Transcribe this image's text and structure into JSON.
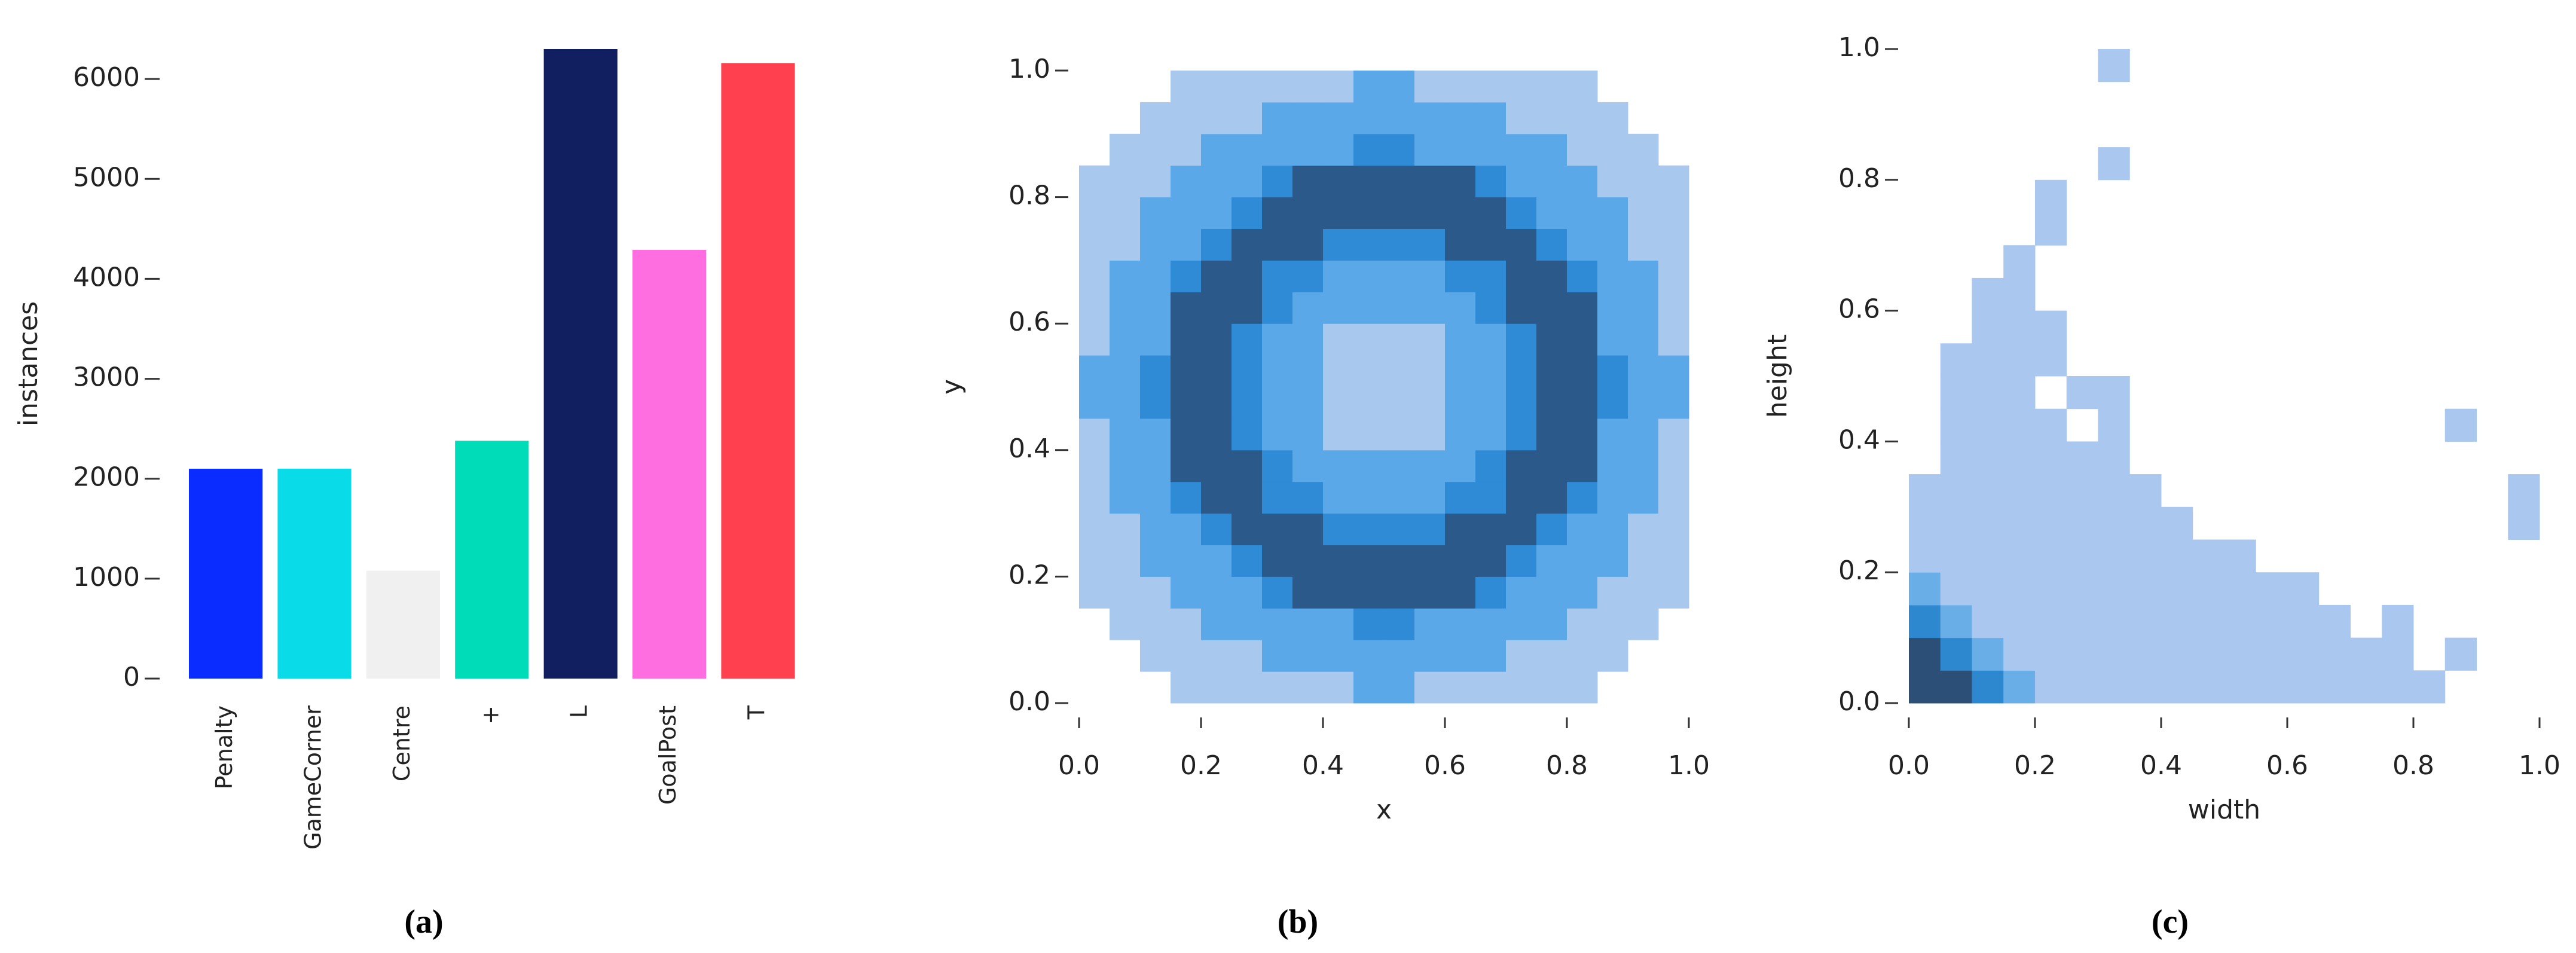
{
  "chart_data": [
    {
      "type": "bar",
      "caption": "(a)",
      "ylabel": "instances",
      "categories": [
        "Penalty",
        "GameCorner",
        "Centre",
        "+",
        "L",
        "GoalPost",
        "T"
      ],
      "values": [
        2100,
        2100,
        1080,
        2380,
        6300,
        4290,
        6160
      ],
      "colors": [
        "#0a2cff",
        "#0adbe8",
        "#f0f0f0",
        "#00dcb8",
        "#111f60",
        "#ff6ee0",
        "#ff414f"
      ],
      "ylim": [
        0,
        6300
      ],
      "yticks": [
        0,
        1000,
        2000,
        3000,
        4000,
        5000,
        6000
      ]
    },
    {
      "type": "heatmap",
      "caption": "(b)",
      "xlabel": "x",
      "ylabel": "y",
      "xlim": [
        0,
        1
      ],
      "ylim": [
        0,
        1
      ],
      "xticks": [
        {
          "value": 0,
          "label": "0.0"
        },
        {
          "value": 0.2,
          "label": "0.2"
        },
        {
          "value": 0.4,
          "label": "0.4"
        },
        {
          "value": 0.6,
          "label": "0.6"
        },
        {
          "value": 0.8,
          "label": "0.8"
        },
        {
          "value": 1,
          "label": "1.0"
        }
      ],
      "yticks": [
        {
          "value": 0,
          "label": "0.0"
        },
        {
          "value": 0.2,
          "label": "0.2"
        },
        {
          "value": 0.4,
          "label": "0.4"
        },
        {
          "value": 0.6,
          "label": "0.6"
        },
        {
          "value": 0.8,
          "label": "0.8"
        },
        {
          "value": 1,
          "label": "1.0"
        }
      ],
      "xbins": [
        0,
        0.05,
        0.1,
        0.15,
        0.2,
        0.25,
        0.3,
        0.35,
        0.4,
        0.45,
        0.5,
        0.55,
        0.6,
        0.65,
        0.7,
        0.75,
        0.8,
        0.85,
        0.9,
        0.95,
        1
      ],
      "ybins": [
        0,
        0.05,
        0.1,
        0.15,
        0.2,
        0.25,
        0.3,
        0.35,
        0.4,
        0.45,
        0.5,
        0.55,
        0.6,
        0.65,
        0.7,
        0.75,
        0.8,
        0.85,
        0.9,
        0.95,
        1
      ],
      "colors": [
        "#a9c8ee",
        "#5aa8e8",
        "#2f8bd6",
        "#2b5a8a"
      ],
      "z": [
        [
          0,
          0,
          0,
          1,
          1,
          1,
          1,
          1,
          1,
          2,
          2,
          1,
          1,
          1,
          1,
          1,
          1,
          0,
          0,
          0
        ],
        [
          0,
          0,
          1,
          1,
          1,
          1,
          2,
          2,
          2,
          2,
          2,
          2,
          2,
          2,
          1,
          1,
          1,
          1,
          0,
          0
        ],
        [
          0,
          1,
          1,
          1,
          2,
          2,
          2,
          2,
          2,
          3,
          3,
          2,
          2,
          2,
          2,
          2,
          1,
          1,
          1,
          0
        ],
        [
          1,
          1,
          1,
          2,
          2,
          2,
          3,
          4,
          4,
          4,
          4,
          4,
          4,
          3,
          2,
          2,
          2,
          1,
          1,
          1
        ],
        [
          1,
          1,
          2,
          2,
          2,
          3,
          4,
          4,
          4,
          4,
          4,
          4,
          4,
          4,
          3,
          2,
          2,
          2,
          1,
          1
        ],
        [
          1,
          1,
          2,
          2,
          3,
          4,
          4,
          4,
          3,
          3,
          3,
          3,
          4,
          4,
          4,
          3,
          2,
          2,
          1,
          1
        ],
        [
          1,
          2,
          2,
          3,
          4,
          4,
          3,
          3,
          2,
          2,
          2,
          2,
          3,
          3,
          4,
          4,
          3,
          2,
          2,
          1
        ],
        [
          1,
          2,
          2,
          4,
          4,
          4,
          3,
          2,
          2,
          2,
          2,
          2,
          2,
          3,
          4,
          4,
          4,
          2,
          2,
          1
        ],
        [
          1,
          2,
          2,
          4,
          4,
          3,
          2,
          2,
          1,
          1,
          1,
          1,
          2,
          2,
          3,
          4,
          4,
          2,
          2,
          1
        ],
        [
          2,
          2,
          3,
          4,
          4,
          3,
          2,
          2,
          1,
          1,
          1,
          1,
          2,
          2,
          3,
          4,
          4,
          3,
          2,
          2
        ],
        [
          2,
          2,
          3,
          4,
          4,
          3,
          2,
          2,
          1,
          1,
          1,
          1,
          2,
          2,
          3,
          4,
          4,
          3,
          2,
          2
        ],
        [
          1,
          2,
          2,
          4,
          4,
          3,
          2,
          2,
          1,
          1,
          1,
          1,
          2,
          2,
          3,
          4,
          4,
          2,
          2,
          1
        ],
        [
          1,
          2,
          2,
          4,
          4,
          4,
          3,
          2,
          2,
          2,
          2,
          2,
          2,
          3,
          4,
          4,
          4,
          2,
          2,
          1
        ],
        [
          1,
          2,
          2,
          3,
          4,
          4,
          3,
          3,
          2,
          2,
          2,
          2,
          3,
          3,
          4,
          4,
          3,
          2,
          2,
          1
        ],
        [
          1,
          1,
          2,
          2,
          3,
          4,
          4,
          4,
          3,
          3,
          3,
          3,
          4,
          4,
          4,
          3,
          2,
          2,
          1,
          1
        ],
        [
          1,
          1,
          2,
          2,
          2,
          3,
          4,
          4,
          4,
          4,
          4,
          4,
          4,
          4,
          3,
          2,
          2,
          2,
          1,
          1
        ],
        [
          1,
          1,
          1,
          2,
          2,
          2,
          3,
          4,
          4,
          4,
          4,
          4,
          4,
          3,
          2,
          2,
          2,
          1,
          1,
          1
        ],
        [
          0,
          1,
          1,
          1,
          2,
          2,
          2,
          2,
          2,
          3,
          3,
          2,
          2,
          2,
          2,
          2,
          1,
          1,
          1,
          0
        ],
        [
          0,
          0,
          1,
          1,
          1,
          1,
          2,
          2,
          2,
          2,
          2,
          2,
          2,
          2,
          1,
          1,
          1,
          1,
          0,
          0
        ],
        [
          0,
          0,
          0,
          1,
          1,
          1,
          1,
          1,
          1,
          2,
          2,
          1,
          1,
          1,
          1,
          1,
          1,
          0,
          0,
          0
        ]
      ]
    },
    {
      "type": "heatmap",
      "caption": "(c)",
      "xlabel": "width",
      "ylabel": "height",
      "xlim": [
        0,
        1
      ],
      "ylim": [
        0,
        1
      ],
      "xticks": [
        {
          "value": 0,
          "label": "0.0"
        },
        {
          "value": 0.2,
          "label": "0.2"
        },
        {
          "value": 0.4,
          "label": "0.4"
        },
        {
          "value": 0.6,
          "label": "0.6"
        },
        {
          "value": 0.8,
          "label": "0.8"
        },
        {
          "value": 1,
          "label": "1.0"
        }
      ],
      "yticks": [
        {
          "value": 0,
          "label": "0.0"
        },
        {
          "value": 0.2,
          "label": "0.2"
        },
        {
          "value": 0.4,
          "label": "0.4"
        },
        {
          "value": 0.6,
          "label": "0.6"
        },
        {
          "value": 0.8,
          "label": "0.8"
        },
        {
          "value": 1,
          "label": "1.0"
        }
      ],
      "xbins": [
        0,
        0.05,
        0.1,
        0.15,
        0.2,
        0.25,
        0.3,
        0.35,
        0.4,
        0.45,
        0.5,
        0.55,
        0.6,
        0.65,
        0.7,
        0.75,
        0.8,
        0.85,
        0.9,
        0.95,
        1
      ],
      "ybins": [
        0,
        0.05,
        0.1,
        0.15,
        0.2,
        0.25,
        0.3,
        0.35,
        0.4,
        0.45,
        0.5,
        0.55,
        0.6,
        0.65,
        0.7,
        0.75,
        0.8,
        0.85,
        0.9,
        0.95,
        1
      ],
      "colors": [
        "#aac8ef",
        "#6aaee8",
        "#2e88d0",
        "#2c4f78"
      ],
      "z": [
        [
          4,
          4,
          3,
          2,
          1,
          1,
          1,
          1,
          1,
          1,
          1,
          1,
          1,
          1,
          1,
          1,
          1,
          0,
          0,
          0
        ],
        [
          4,
          3,
          2,
          1,
          1,
          1,
          1,
          1,
          1,
          1,
          1,
          1,
          1,
          1,
          1,
          1,
          0,
          1,
          0,
          0
        ],
        [
          3,
          2,
          1,
          1,
          1,
          1,
          1,
          1,
          1,
          1,
          1,
          1,
          1,
          1,
          0,
          1,
          0,
          0,
          0,
          0
        ],
        [
          2,
          1,
          1,
          1,
          1,
          1,
          1,
          1,
          1,
          1,
          1,
          1,
          1,
          0,
          0,
          0,
          0,
          0,
          0,
          0
        ],
        [
          1,
          1,
          1,
          1,
          1,
          1,
          1,
          1,
          1,
          1,
          1,
          0,
          0,
          0,
          0,
          0,
          0,
          0,
          0,
          0
        ],
        [
          1,
          1,
          1,
          1,
          1,
          1,
          1,
          1,
          1,
          0,
          0,
          0,
          0,
          0,
          0,
          0,
          0,
          0,
          0,
          1
        ],
        [
          1,
          1,
          1,
          1,
          1,
          1,
          1,
          1,
          0,
          0,
          0,
          0,
          0,
          0,
          0,
          0,
          0,
          0,
          0,
          1
        ],
        [
          0,
          1,
          1,
          1,
          1,
          1,
          1,
          0,
          0,
          0,
          0,
          0,
          0,
          0,
          0,
          0,
          0,
          0,
          0,
          0
        ],
        [
          0,
          1,
          1,
          1,
          1,
          0,
          1,
          0,
          0,
          0,
          0,
          0,
          0,
          0,
          0,
          0,
          0,
          1,
          0,
          0
        ],
        [
          0,
          1,
          1,
          1,
          0,
          1,
          1,
          0,
          0,
          0,
          0,
          0,
          0,
          0,
          0,
          0,
          0,
          0,
          0,
          0
        ],
        [
          0,
          1,
          1,
          1,
          1,
          0,
          0,
          0,
          0,
          0,
          0,
          0,
          0,
          0,
          0,
          0,
          0,
          0,
          0,
          0
        ],
        [
          0,
          0,
          1,
          1,
          1,
          0,
          0,
          0,
          0,
          0,
          0,
          0,
          0,
          0,
          0,
          0,
          0,
          0,
          0,
          0
        ],
        [
          0,
          0,
          1,
          1,
          0,
          0,
          0,
          0,
          0,
          0,
          0,
          0,
          0,
          0,
          0,
          0,
          0,
          0,
          0,
          0
        ],
        [
          0,
          0,
          0,
          1,
          0,
          0,
          0,
          0,
          0,
          0,
          0,
          0,
          0,
          0,
          0,
          0,
          0,
          0,
          0,
          0
        ],
        [
          0,
          0,
          0,
          0,
          1,
          0,
          0,
          0,
          0,
          0,
          0,
          0,
          0,
          0,
          0,
          0,
          0,
          0,
          0,
          0
        ],
        [
          0,
          0,
          0,
          0,
          1,
          0,
          0,
          0,
          0,
          0,
          0,
          0,
          0,
          0,
          0,
          0,
          0,
          0,
          0,
          0
        ],
        [
          0,
          0,
          0,
          0,
          0,
          0,
          1,
          0,
          0,
          0,
          0,
          0,
          0,
          0,
          0,
          0,
          0,
          0,
          0,
          0
        ],
        [
          0,
          0,
          0,
          0,
          0,
          0,
          0,
          0,
          0,
          0,
          0,
          0,
          0,
          0,
          0,
          0,
          0,
          0,
          0,
          0
        ],
        [
          0,
          0,
          0,
          0,
          0,
          0,
          0,
          0,
          0,
          0,
          0,
          0,
          0,
          0,
          0,
          0,
          0,
          0,
          0,
          0
        ],
        [
          0,
          0,
          0,
          0,
          0,
          0,
          1,
          0,
          0,
          0,
          0,
          0,
          0,
          0,
          0,
          0,
          0,
          0,
          0,
          0
        ]
      ]
    }
  ]
}
